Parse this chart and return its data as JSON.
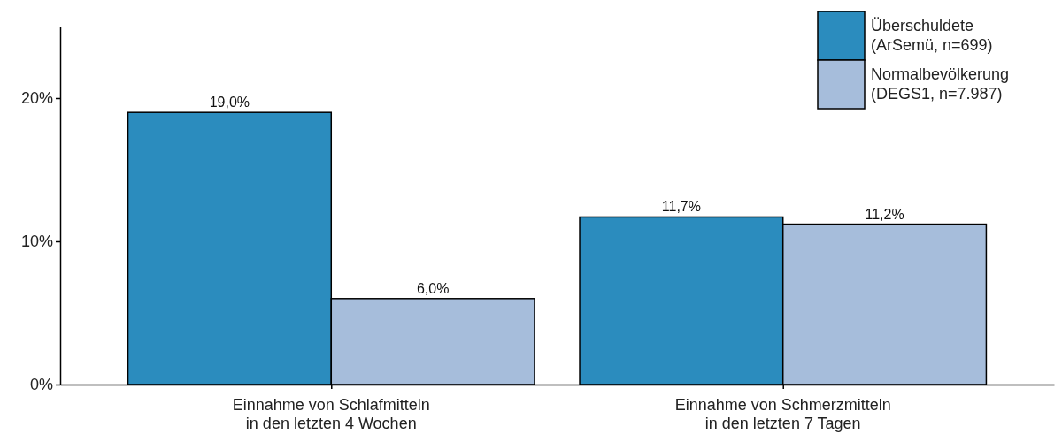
{
  "chart_data": {
    "type": "bar",
    "categories": [
      "Einnahme von Schlafmitteln\nin den letzten 4 Wochen",
      "Einnahme von Schmerzmitteln\nin den letzten 7 Tagen"
    ],
    "series": [
      {
        "name": "Überschuldete\n(ArSemü, n=699)",
        "color": "#2b8cbe",
        "values": [
          19.0,
          11.7
        ],
        "value_labels": [
          "19,0%",
          "11,7%"
        ]
      },
      {
        "name": "Normalbevölkerung\n(DEGS1, n=7.987)",
        "color": "#a6bddb",
        "values": [
          6.0,
          11.2
        ],
        "value_labels": [
          "6,0%",
          "11,2%"
        ]
      }
    ],
    "ylim": [
      0,
      25
    ],
    "yticks": [
      {
        "value": 0,
        "label": "0%"
      },
      {
        "value": 10,
        "label": "10%"
      },
      {
        "value": 20,
        "label": "20%"
      }
    ],
    "grid": false,
    "legend": "top right"
  }
}
